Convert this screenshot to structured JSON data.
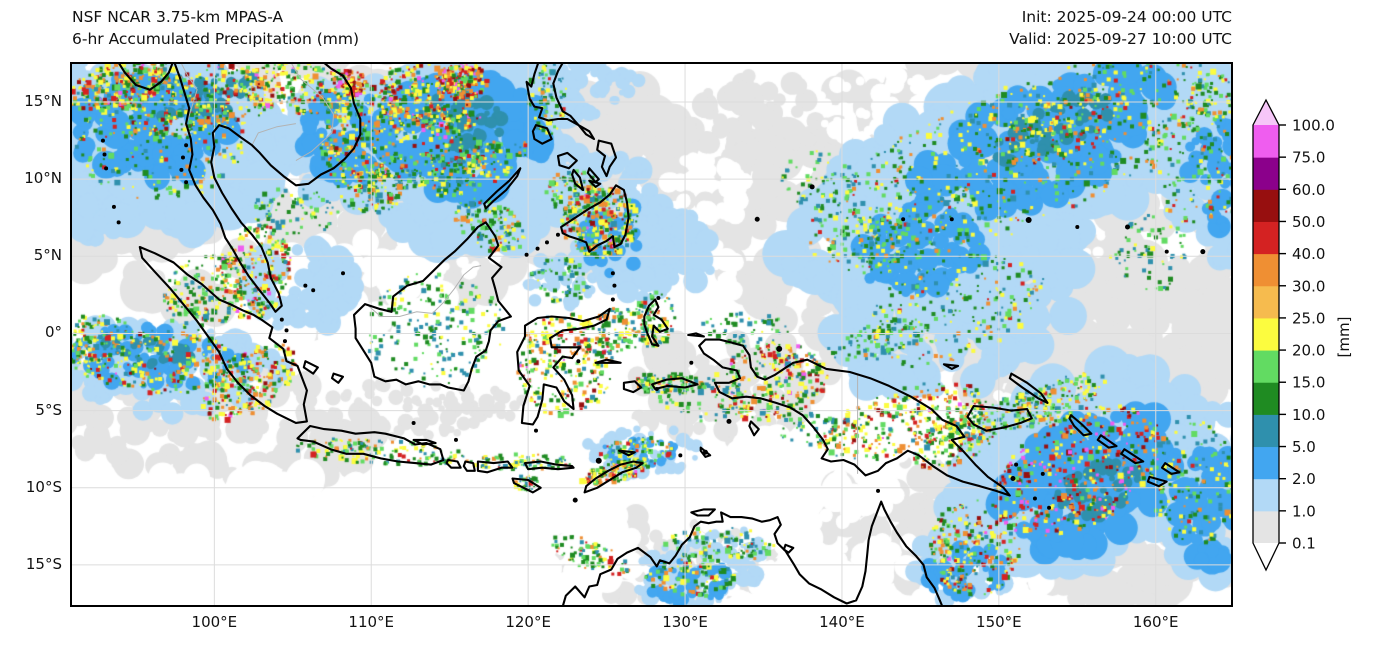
{
  "header": {
    "title_line1": "NSF NCAR 3.75-km MPAS-A",
    "title_line2": "6-hr Accumulated Precipitation (mm)",
    "init_label": "Init: 2025-09-24 00:00 UTC",
    "valid_label": "Valid: 2025-09-27 10:00 UTC"
  },
  "axes": {
    "lon_ticks": [
      {
        "label": "100°E",
        "deg": 100
      },
      {
        "label": "110°E",
        "deg": 110
      },
      {
        "label": "120°E",
        "deg": 120
      },
      {
        "label": "130°E",
        "deg": 130
      },
      {
        "label": "140°E",
        "deg": 140
      },
      {
        "label": "150°E",
        "deg": 150
      },
      {
        "label": "160°E",
        "deg": 160
      }
    ],
    "lat_ticks": [
      {
        "label": "15°N",
        "deg": 15
      },
      {
        "label": "10°N",
        "deg": 10
      },
      {
        "label": "5°N",
        "deg": 5
      },
      {
        "label": "0°",
        "deg": 0
      },
      {
        "label": "5°S",
        "deg": -5
      },
      {
        "label": "10°S",
        "deg": -10
      },
      {
        "label": "15°S",
        "deg": -15
      }
    ]
  },
  "colorbar": {
    "unit_label": "[mm]",
    "levels": [
      "0.1",
      "1.0",
      "2.0",
      "5.0",
      "10.0",
      "15.0",
      "20.0",
      "25.0",
      "30.0",
      "40.0",
      "50.0",
      "60.0",
      "75.0",
      "100.0"
    ],
    "band_colors": [
      "#e4e4e4",
      "#b2d9f6",
      "#42a6f0",
      "#2f90ad",
      "#1f8b22",
      "#62db62",
      "#fcfc3f",
      "#f6bb4e",
      "#ef8f33",
      "#d42222",
      "#970f0f",
      "#8b008b",
      "#ef5def"
    ],
    "under_color": "#ffffff",
    "over_color": "#f6c6f8"
  }
}
